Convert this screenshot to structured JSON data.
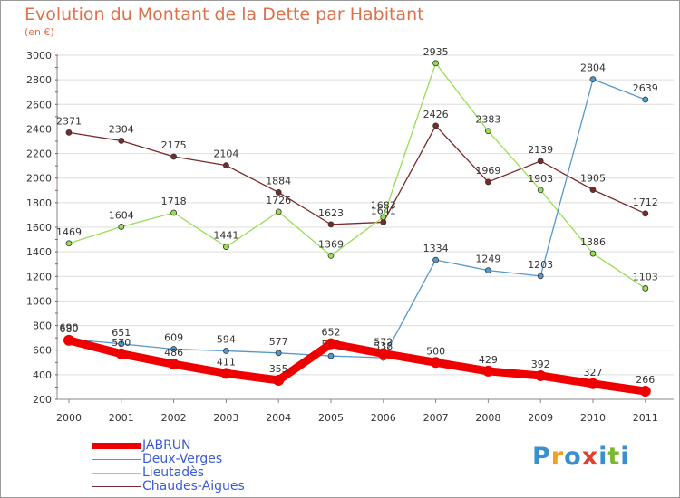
{
  "header": {
    "title": "Evolution du Montant de la Dette par Habitant",
    "subtitle": "(en €)"
  },
  "logo": {
    "text": "Proxiti",
    "letters": [
      {
        "ch": "P",
        "color": "#3a8fd0"
      },
      {
        "ch": "r",
        "color": "#f0a020"
      },
      {
        "ch": "o",
        "color": "#3a8fd0"
      },
      {
        "ch": "x",
        "color": "#e04030"
      },
      {
        "ch": "i",
        "color": "#3a8fd0"
      },
      {
        "ch": "t",
        "color": "#7ab830"
      },
      {
        "ch": "i",
        "color": "#3a8fd0"
      }
    ]
  },
  "chart_data": {
    "type": "line",
    "title": "Evolution du Montant de la Dette par Habitant",
    "subtitle": "(en €)",
    "xlabel": "",
    "ylabel": "",
    "x": [
      "2000",
      "2001",
      "2002",
      "2003",
      "2004",
      "2005",
      "2006",
      "2007",
      "2008",
      "2009",
      "2010",
      "2011"
    ],
    "ylim": [
      200,
      3000
    ],
    "yticks": [
      200,
      400,
      600,
      800,
      1000,
      1200,
      1400,
      1600,
      1800,
      2000,
      2200,
      2400,
      2600,
      2800,
      3000
    ],
    "legend_position": "bottom-left",
    "series": [
      {
        "name": "Chaudes-Aigues",
        "color": "#7a2a2a",
        "values": [
          2371,
          2304,
          2175,
          2104,
          1884,
          1623,
          1641,
          2426,
          1969,
          2139,
          1905,
          1712
        ],
        "labels": [
          "2371",
          "2304",
          "2175",
          "2104",
          "1884",
          "1623",
          "1641",
          "2426",
          "1969",
          "2139",
          "1905",
          "1712"
        ]
      },
      {
        "name": "Lieutadès",
        "color": "#99dd55",
        "values": [
          1469,
          1604,
          1718,
          1441,
          1726,
          1369,
          1683,
          2935,
          2383,
          1903,
          1386,
          1103
        ],
        "labels": [
          "1469",
          "1604",
          "1718",
          "1441",
          "1726",
          "1369",
          "1683",
          "2935",
          "2383",
          "1903",
          "1386",
          "1103"
        ]
      },
      {
        "name": "Deux-Verges",
        "color": "#5599cc",
        "values": [
          690,
          651,
          609,
          594,
          577,
          553,
          538,
          1334,
          1249,
          1203,
          2804,
          2639
        ],
        "labels": [
          "690",
          "651",
          "609",
          "594",
          "577",
          "553",
          "538",
          "1334",
          "1249",
          "1203",
          "2804",
          "2639"
        ]
      },
      {
        "name": "JABRUN",
        "color": "#ee0000",
        "values": [
          680,
          570,
          486,
          411,
          355,
          652,
          572,
          500,
          429,
          392,
          327,
          266
        ],
        "labels": [
          "680",
          "570",
          "486",
          "411",
          "355",
          "652",
          "572",
          "500",
          "429",
          "392",
          "327",
          "266"
        ]
      }
    ]
  }
}
